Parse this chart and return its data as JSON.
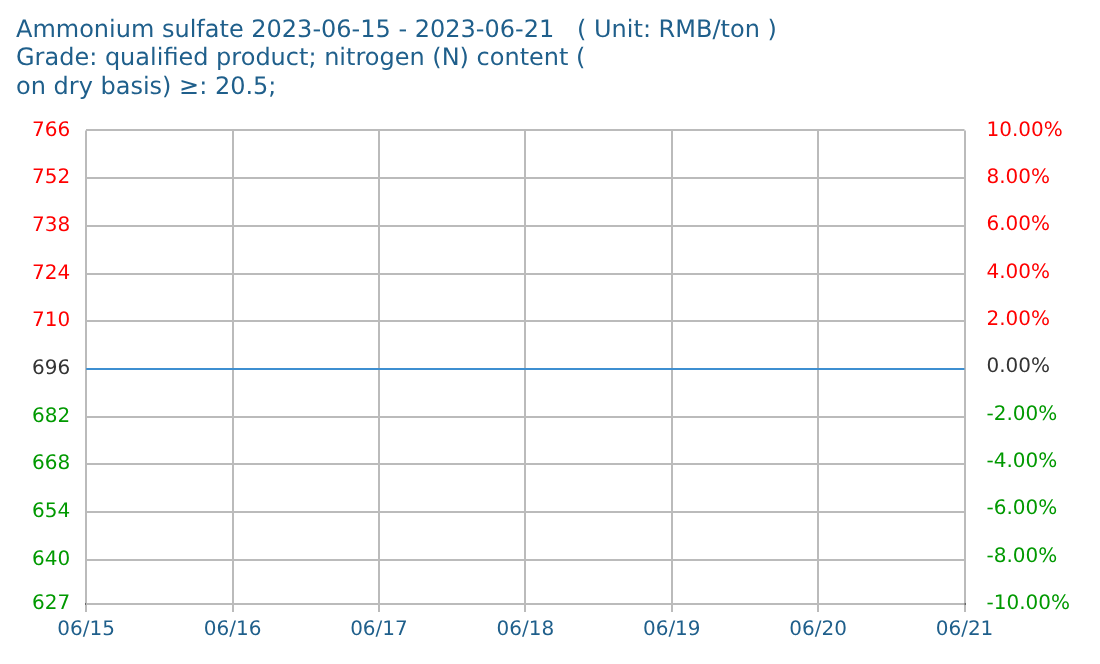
{
  "chart_data": {
    "type": "line",
    "title": [
      "Ammonium sulfate 2023-06-15 - 2023-06-21   ( Unit: RMB/ton )",
      "Grade: qualified product; nitrogen (N) content (",
      "on dry basis) ≥: 20.5;"
    ],
    "categories": [
      "06/15",
      "06/16",
      "06/17",
      "06/18",
      "06/19",
      "06/20",
      "06/21"
    ],
    "series": [
      {
        "color": "#3d8fd1",
        "values": [
          696,
          696,
          696,
          696,
          696,
          696,
          696
        ]
      }
    ],
    "ylim": [
      627,
      766
    ],
    "yticks": [
      766,
      752,
      738,
      724,
      710,
      696,
      682,
      668,
      654,
      640,
      627
    ],
    "y2lim": [
      -10,
      10
    ],
    "y2ticks": [
      {
        "value": 10,
        "label": "10.00%"
      },
      {
        "value": 8,
        "label": "8.00%"
      },
      {
        "value": 6,
        "label": "6.00%"
      },
      {
        "value": 4,
        "label": "4.00%"
      },
      {
        "value": 2,
        "label": "2.00%"
      },
      {
        "value": 0,
        "label": "0.00%"
      },
      {
        "value": -2,
        "label": "-2.00%"
      },
      {
        "value": -4,
        "label": "-4.00%"
      },
      {
        "value": -6,
        "label": "-6.00%"
      },
      {
        "value": -8,
        "label": "-8.00%"
      },
      {
        "value": -10,
        "label": "-10.00%"
      }
    ],
    "grid": true,
    "legend": false,
    "marker": "none",
    "line_style": "solid"
  }
}
